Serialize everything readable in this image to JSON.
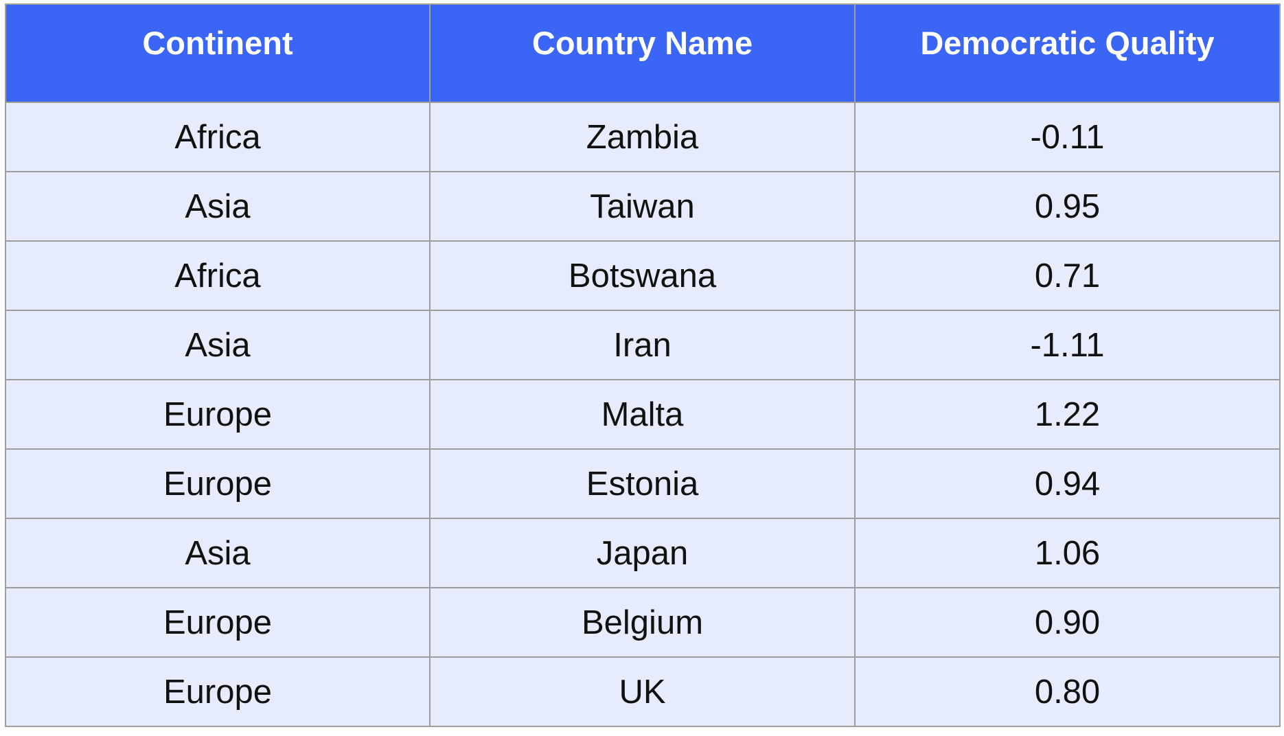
{
  "chart_data": {
    "type": "table",
    "columns": [
      "Continent",
      "Country Name",
      "Democratic Quality"
    ],
    "rows": [
      [
        "Africa",
        "Zambia",
        "-0.11"
      ],
      [
        "Asia",
        "Taiwan",
        "0.95"
      ],
      [
        "Africa",
        "Botswana",
        "0.71"
      ],
      [
        "Asia",
        "Iran",
        "-1.11"
      ],
      [
        "Europe",
        "Malta",
        "1.22"
      ],
      [
        "Europe",
        "Estonia",
        "0.94"
      ],
      [
        "Asia",
        "Japan",
        "1.06"
      ],
      [
        "Europe",
        "Belgium",
        "0.90"
      ],
      [
        "Europe",
        "UK",
        "0.80"
      ]
    ]
  },
  "colors": {
    "header_background": "#3b66f5",
    "header_text": "#ffffff",
    "row_background": "#e6ecfb",
    "grid_line": "#9e9e9e"
  }
}
